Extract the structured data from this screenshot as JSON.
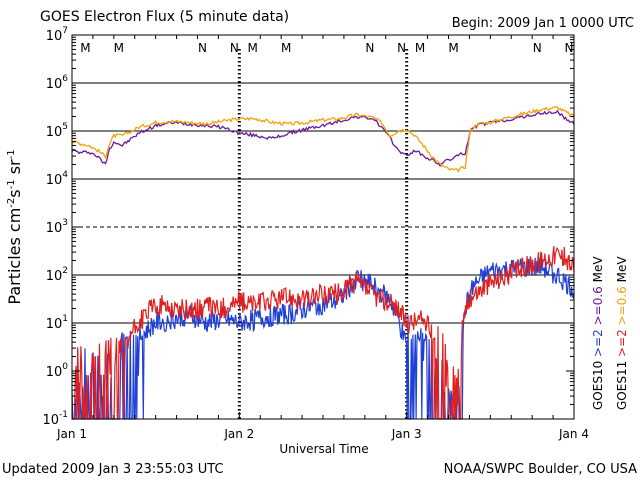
{
  "chart_data": {
    "type": "line",
    "title": "GOES Electron Flux (5 minute data)",
    "begin_label": "Begin: 2009 Jan 1 0000 UTC",
    "xlabel": "Universal Time",
    "ylabel": "Particles cm-2 s-1 sr-1",
    "ylabel_parts": {
      "base": "Particles cm",
      "e1": "-2",
      "mid1": "s",
      "e2": "-1",
      "mid2": " sr",
      "e3": "-1"
    },
    "yscale": "log",
    "ylim": [
      0.1,
      10000000
    ],
    "xlim": [
      0,
      3
    ],
    "x_unit": "days since 2009 Jan 1 0000 UTC",
    "x_ticks": [
      {
        "value": 0,
        "label": "Jan 1"
      },
      {
        "value": 1,
        "label": "Jan 2"
      },
      {
        "value": 2,
        "label": "Jan 3"
      },
      {
        "value": 3,
        "label": "Jan 4"
      }
    ],
    "y_ticks": [
      {
        "exp": -1,
        "label": "10",
        "sup": "-1"
      },
      {
        "exp": 0,
        "label": "10",
        "sup": "0"
      },
      {
        "exp": 1,
        "label": "10",
        "sup": "1"
      },
      {
        "exp": 2,
        "label": "10",
        "sup": "2"
      },
      {
        "exp": 3,
        "label": "10",
        "sup": "3"
      },
      {
        "exp": 4,
        "label": "10",
        "sup": "4"
      },
      {
        "exp": 5,
        "label": "10",
        "sup": "5"
      },
      {
        "exp": 6,
        "label": "10",
        "sup": "6"
      },
      {
        "exp": 7,
        "label": "10",
        "sup": "7"
      }
    ],
    "solid_gridlines_exp": [
      1,
      2,
      4,
      5,
      6
    ],
    "dashed_gridlines_exp": [
      3
    ],
    "local_time_markers": [
      {
        "x": 0.08,
        "label": "M",
        "color": "#1f3fd6"
      },
      {
        "x": 0.28,
        "label": "M",
        "color": "#e02020"
      },
      {
        "x": 0.78,
        "label": "N",
        "color": "#1f3fd6"
      },
      {
        "x": 0.97,
        "label": "N",
        "color": "#e02020"
      },
      {
        "x": 1.08,
        "label": "M",
        "color": "#1f3fd6"
      },
      {
        "x": 1.28,
        "label": "M",
        "color": "#e02020"
      },
      {
        "x": 1.78,
        "label": "N",
        "color": "#1f3fd6"
      },
      {
        "x": 1.97,
        "label": "N",
        "color": "#e02020"
      },
      {
        "x": 2.08,
        "label": "M",
        "color": "#1f3fd6"
      },
      {
        "x": 2.28,
        "label": "M",
        "color": "#e02020"
      },
      {
        "x": 2.78,
        "label": "N",
        "color": "#1f3fd6"
      },
      {
        "x": 2.97,
        "label": "N",
        "color": "#e02020"
      }
    ],
    "legend": [
      {
        "label": ">=2",
        "color": "#1f3fd6"
      },
      {
        "label": ">=0.6",
        "color": "#6a1b9a"
      },
      {
        "label": "MeV",
        "color": "#000000"
      },
      {
        "label": ">=2",
        "color": "#e02020"
      },
      {
        "label": ">=0.6",
        "color": "#f2a20c"
      },
      {
        "label": "MeV",
        "color": "#000000"
      }
    ],
    "satellites": [
      "GOES10",
      "GOES11"
    ],
    "series": [
      {
        "name": "GOES10 >=0.6 MeV",
        "color": "#6a1b9a",
        "noisy": false,
        "x": [
          0,
          0.05,
          0.1,
          0.15,
          0.2,
          0.22,
          0.25,
          0.3,
          0.4,
          0.5,
          0.6,
          0.7,
          0.8,
          0.9,
          1.0,
          1.1,
          1.2,
          1.3,
          1.4,
          1.5,
          1.6,
          1.7,
          1.8,
          1.85,
          1.9,
          1.95,
          2.0,
          2.05,
          2.1,
          2.15,
          2.2,
          2.25,
          2.3,
          2.35,
          2.38,
          2.42,
          2.5,
          2.6,
          2.7,
          2.8,
          2.9,
          2.95,
          3.0
        ],
        "y": [
          40000,
          35000,
          37000,
          30000,
          20000,
          40000,
          60000,
          50000,
          90000,
          130000,
          150000,
          140000,
          130000,
          120000,
          90000,
          80000,
          70000,
          90000,
          110000,
          130000,
          160000,
          200000,
          180000,
          120000,
          70000,
          40000,
          30000,
          40000,
          30000,
          25000,
          20000,
          25000,
          30000,
          35000,
          100000,
          130000,
          150000,
          170000,
          200000,
          230000,
          250000,
          180000,
          140000
        ]
      },
      {
        "name": "GOES11 >=0.6 MeV",
        "color": "#f2a20c",
        "noisy": false,
        "x": [
          0,
          0.05,
          0.1,
          0.15,
          0.2,
          0.22,
          0.25,
          0.3,
          0.4,
          0.5,
          0.6,
          0.7,
          0.8,
          0.9,
          1.0,
          1.1,
          1.2,
          1.3,
          1.4,
          1.5,
          1.6,
          1.7,
          1.8,
          1.85,
          1.9,
          1.95,
          2.0,
          2.05,
          2.1,
          2.15,
          2.2,
          2.25,
          2.3,
          2.35,
          2.38,
          2.42,
          2.5,
          2.6,
          2.7,
          2.8,
          2.9,
          2.95,
          3.0
        ],
        "y": [
          60000,
          55000,
          50000,
          40000,
          30000,
          50000,
          80000,
          80000,
          120000,
          150000,
          160000,
          150000,
          140000,
          160000,
          180000,
          180000,
          150000,
          140000,
          150000,
          170000,
          180000,
          220000,
          190000,
          150000,
          80000,
          100000,
          110000,
          80000,
          50000,
          30000,
          20000,
          16000,
          15000,
          18000,
          100000,
          140000,
          150000,
          190000,
          230000,
          280000,
          310000,
          250000,
          200000
        ]
      },
      {
        "name": "GOES10 >=2 MeV",
        "color": "#1f3fd6",
        "noisy": true,
        "x": [
          0,
          0.1,
          0.2,
          0.3,
          0.4,
          0.5,
          0.6,
          0.7,
          0.8,
          0.9,
          1.0,
          1.1,
          1.2,
          1.3,
          1.4,
          1.5,
          1.6,
          1.65,
          1.7,
          1.8,
          1.9,
          1.95,
          2.0,
          2.1,
          2.2,
          2.3,
          2.35,
          2.4,
          2.5,
          2.6,
          2.7,
          2.8,
          2.9,
          2.95,
          3.0
        ],
        "y": [
          1,
          0.8,
          1,
          2,
          5,
          10,
          12,
          15,
          10,
          12,
          10,
          12,
          14,
          15,
          20,
          25,
          30,
          50,
          90,
          60,
          30,
          12,
          3,
          5,
          0.5,
          0.3,
          20,
          60,
          120,
          130,
          140,
          150,
          100,
          70,
          50
        ]
      },
      {
        "name": "GOES11 >=2 MeV",
        "color": "#e02020",
        "noisy": true,
        "x": [
          0,
          0.1,
          0.2,
          0.3,
          0.4,
          0.5,
          0.6,
          0.7,
          0.8,
          0.9,
          1.0,
          1.1,
          1.2,
          1.3,
          1.4,
          1.5,
          1.6,
          1.65,
          1.7,
          1.8,
          1.9,
          1.95,
          2.0,
          2.1,
          2.2,
          2.3,
          2.35,
          2.4,
          2.5,
          2.6,
          2.7,
          2.8,
          2.9,
          2.95,
          3.0
        ],
        "y": [
          2,
          1,
          1.5,
          3,
          10,
          25,
          20,
          18,
          22,
          20,
          28,
          25,
          30,
          35,
          30,
          40,
          40,
          60,
          70,
          40,
          25,
          20,
          10,
          12,
          3,
          0.5,
          20,
          40,
          70,
          100,
          150,
          200,
          280,
          220,
          150
        ]
      }
    ]
  },
  "footer": {
    "updated": "Updated 2009 Jan  3 23:55:03 UTC",
    "credit": "NOAA/SWPC Boulder, CO USA"
  }
}
